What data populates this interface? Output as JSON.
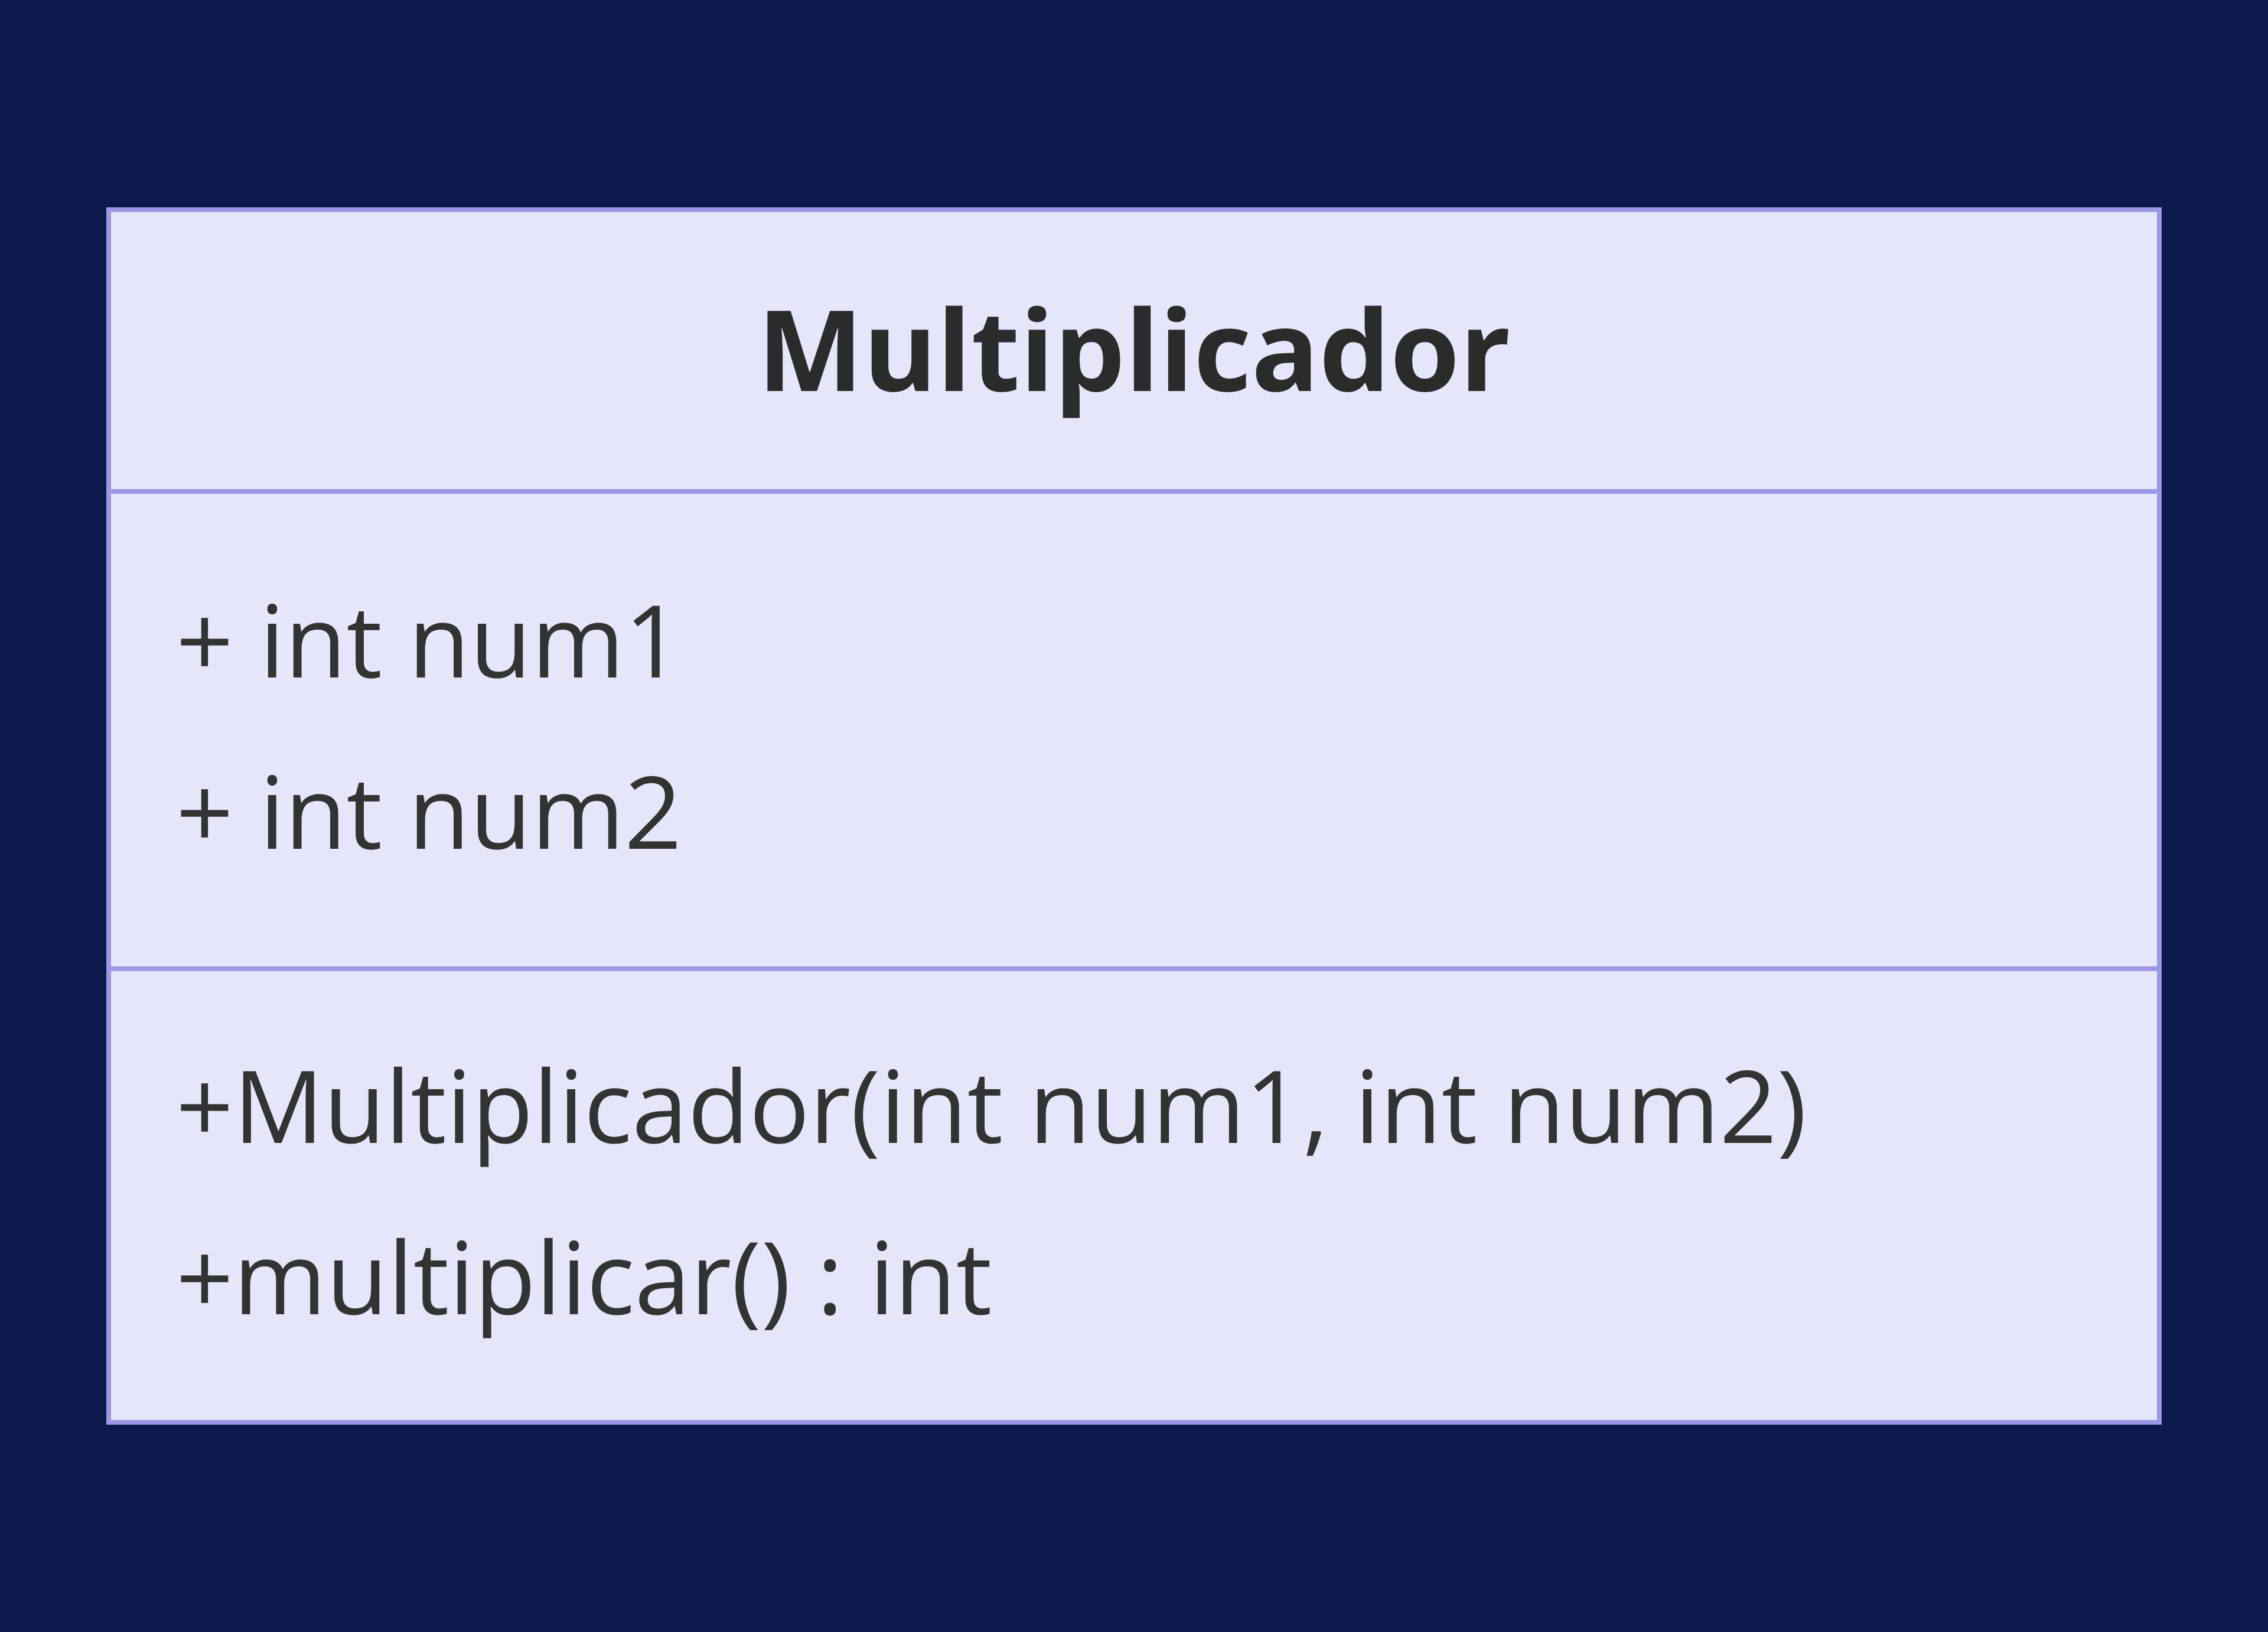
{
  "uml_class": {
    "type": "class-diagram",
    "background_color": "#0d1b4c",
    "box_background": "#e6e6fa",
    "border_color": "#9999e6",
    "border_width": 8,
    "text_color": "#333333",
    "title_color": "#2b2b2b",
    "title_fontsize": 190,
    "title_fontweight": 700,
    "member_fontsize": 170,
    "member_fontweight": 400,
    "class_name": "Multiplicador",
    "attributes": [
      "+ int num1",
      "+ int num2"
    ],
    "methods": [
      "+Multiplicador(int num1, int num2)",
      "+multiplicar() : int"
    ]
  }
}
